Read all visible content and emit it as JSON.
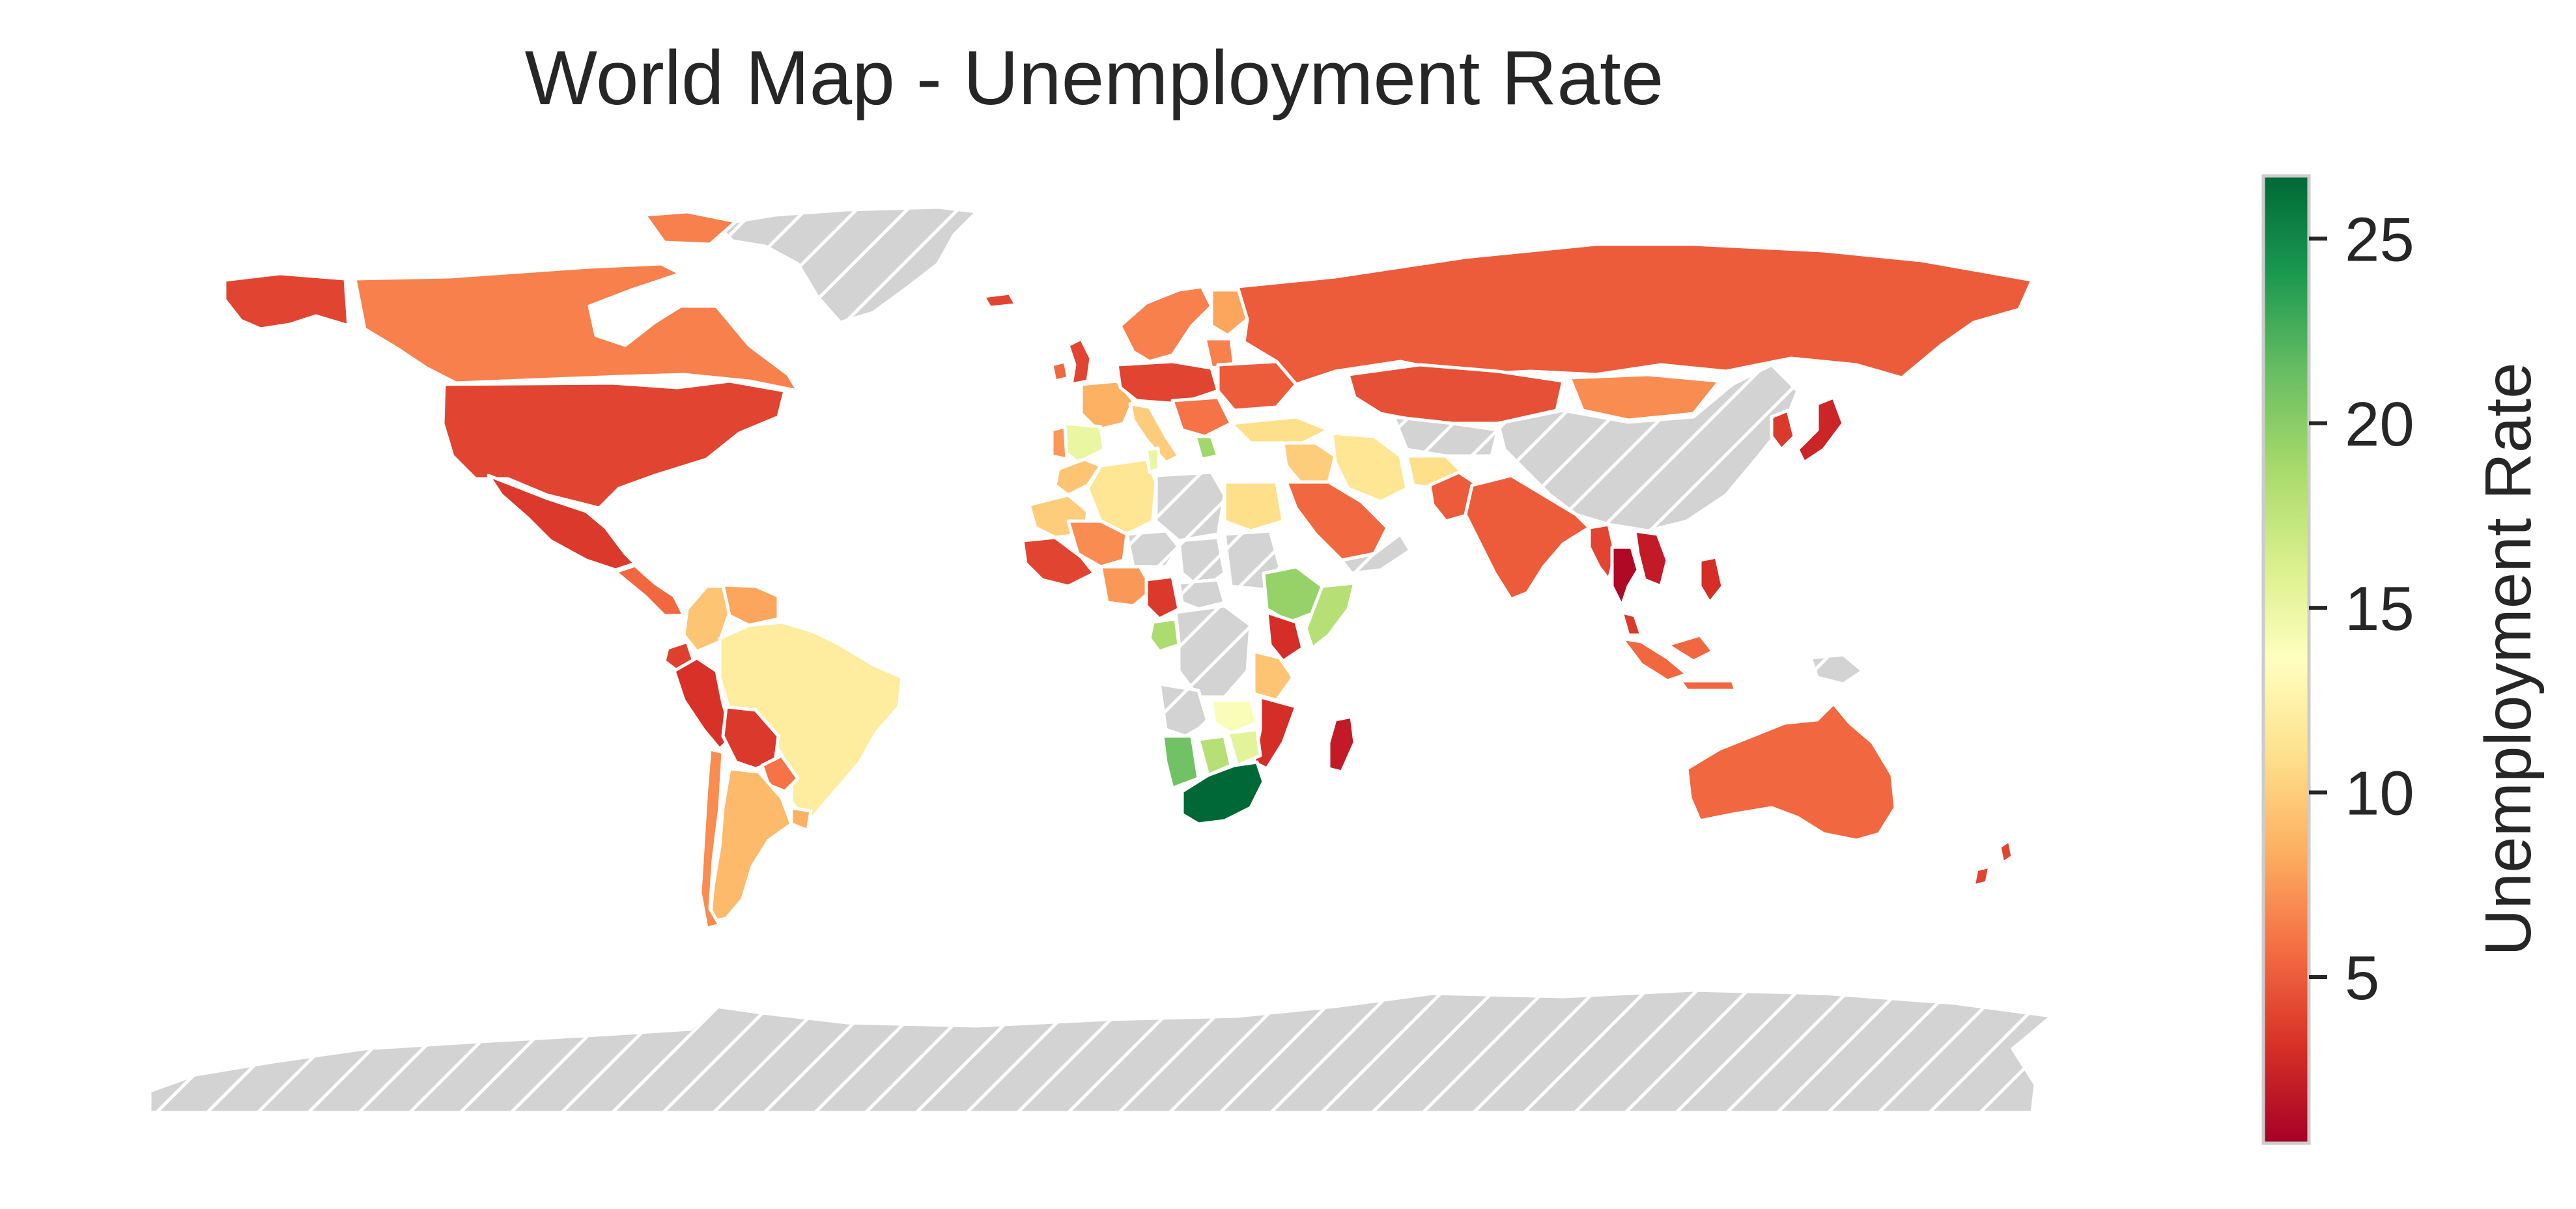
{
  "map": {
    "title": "World Map - Unemployment Rate",
    "colormap": [
      "#a50026",
      "#d73027",
      "#f46d43",
      "#fdae61",
      "#fee08b",
      "#ffffbf",
      "#d9ef8b",
      "#a6d96a",
      "#66bd63",
      "#1a9850",
      "#006837"
    ],
    "value_range": [
      0.5,
      26.7
    ],
    "missing_color": "#d3d3d3",
    "missing_pattern": "hatch",
    "colorbar": {
      "label": "Unemployment Rate",
      "ticks": [
        {
          "value": 5,
          "label": "5"
        },
        {
          "value": 10,
          "label": "10"
        },
        {
          "value": 15,
          "label": "15"
        },
        {
          "value": 20,
          "label": "20"
        },
        {
          "value": 25,
          "label": "25"
        }
      ]
    },
    "regions": [
      {
        "name": "alaska",
        "value": 4.0
      },
      {
        "name": "canada",
        "value": 6.5
      },
      {
        "name": "canadian-arctic-islands",
        "value": 6.5
      },
      {
        "name": "usa",
        "value": 4.0
      },
      {
        "name": "mexico",
        "value": 3.5
      },
      {
        "name": "central-america",
        "value": 5.5
      },
      {
        "name": "colombia",
        "value": 9.5
      },
      {
        "name": "venezuela",
        "value": 8.0
      },
      {
        "name": "ecuador",
        "value": 3.8
      },
      {
        "name": "peru",
        "value": 3.2
      },
      {
        "name": "bolivia",
        "value": 3.5
      },
      {
        "name": "brazil",
        "value": 12.0
      },
      {
        "name": "paraguay",
        "value": 6.0
      },
      {
        "name": "uruguay",
        "value": 8.5
      },
      {
        "name": "argentina",
        "value": 9.0
      },
      {
        "name": "chile",
        "value": 7.0
      },
      {
        "name": "greenland",
        "value": null
      },
      {
        "name": "iceland",
        "value": 4.0
      },
      {
        "name": "uk",
        "value": 4.0
      },
      {
        "name": "ireland",
        "value": 5.5
      },
      {
        "name": "scandinavia",
        "value": 6.5
      },
      {
        "name": "finland",
        "value": 8.0
      },
      {
        "name": "baltics",
        "value": 6.5
      },
      {
        "name": "spain",
        "value": 15.0
      },
      {
        "name": "portugal",
        "value": 7.5
      },
      {
        "name": "france",
        "value": 8.5
      },
      {
        "name": "central-europe",
        "value": 4.0
      },
      {
        "name": "italy",
        "value": 10.0
      },
      {
        "name": "balkans",
        "value": 6.0
      },
      {
        "name": "greece",
        "value": 19.0
      },
      {
        "name": "eastern-europe",
        "value": 5.0
      },
      {
        "name": "russia",
        "value": 5.0
      },
      {
        "name": "kazakhstan",
        "value": 4.5
      },
      {
        "name": "mongolia",
        "value": 7.0
      },
      {
        "name": "china",
        "value": null
      },
      {
        "name": "japan",
        "value": 2.5
      },
      {
        "name": "korea",
        "value": 3.5
      },
      {
        "name": "turkey",
        "value": 11.0
      },
      {
        "name": "middle-east",
        "value": 10.0
      },
      {
        "name": "iran",
        "value": 11.5
      },
      {
        "name": "afghanistan",
        "value": 11.0
      },
      {
        "name": "central-asia",
        "value": null
      },
      {
        "name": "saudi-arabia",
        "value": 5.5
      },
      {
        "name": "yemen-oman",
        "value": null
      },
      {
        "name": "pakistan",
        "value": 5.0
      },
      {
        "name": "india",
        "value": 5.0
      },
      {
        "name": "myanmar",
        "value": 4.0
      },
      {
        "name": "thailand",
        "value": 1.0
      },
      {
        "name": "indochina",
        "value": 2.0
      },
      {
        "name": "malaysia",
        "value": 3.5
      },
      {
        "name": "indonesia",
        "value": 5.5
      },
      {
        "name": "philippines",
        "value": 3.0
      },
      {
        "name": "new-guinea",
        "value": null
      },
      {
        "name": "australia",
        "value": 5.5
      },
      {
        "name": "new-zealand",
        "value": 4.0
      },
      {
        "name": "morocco",
        "value": 9.5
      },
      {
        "name": "algeria",
        "value": 11.5
      },
      {
        "name": "tunisia",
        "value": 15.0
      },
      {
        "name": "libya",
        "value": null
      },
      {
        "name": "egypt",
        "value": 11.0
      },
      {
        "name": "mauritania",
        "value": 10.0
      },
      {
        "name": "mali",
        "value": 7.0
      },
      {
        "name": "niger",
        "value": null
      },
      {
        "name": "chad",
        "value": null
      },
      {
        "name": "sudan",
        "value": null
      },
      {
        "name": "west-africa-coast",
        "value": 4.0
      },
      {
        "name": "nigeria",
        "value": 7.5
      },
      {
        "name": "cameroon",
        "value": 3.5
      },
      {
        "name": "car",
        "value": null
      },
      {
        "name": "ethiopia",
        "value": 19.5
      },
      {
        "name": "somalia",
        "value": 18.0
      },
      {
        "name": "kenya",
        "value": 3.0
      },
      {
        "name": "gabon-congo",
        "value": 18.5
      },
      {
        "name": "drc",
        "value": null
      },
      {
        "name": "tanzania",
        "value": 9.5
      },
      {
        "name": "angola",
        "value": null
      },
      {
        "name": "zambia",
        "value": 14.0
      },
      {
        "name": "mozambique",
        "value": 3.0
      },
      {
        "name": "namibia",
        "value": 21.0
      },
      {
        "name": "botswana",
        "value": 18.0
      },
      {
        "name": "zimbabwe",
        "value": 15.5
      },
      {
        "name": "south-africa",
        "value": 26.7
      },
      {
        "name": "madagascar",
        "value": 2.0
      },
      {
        "name": "antarctica",
        "value": null
      }
    ]
  }
}
